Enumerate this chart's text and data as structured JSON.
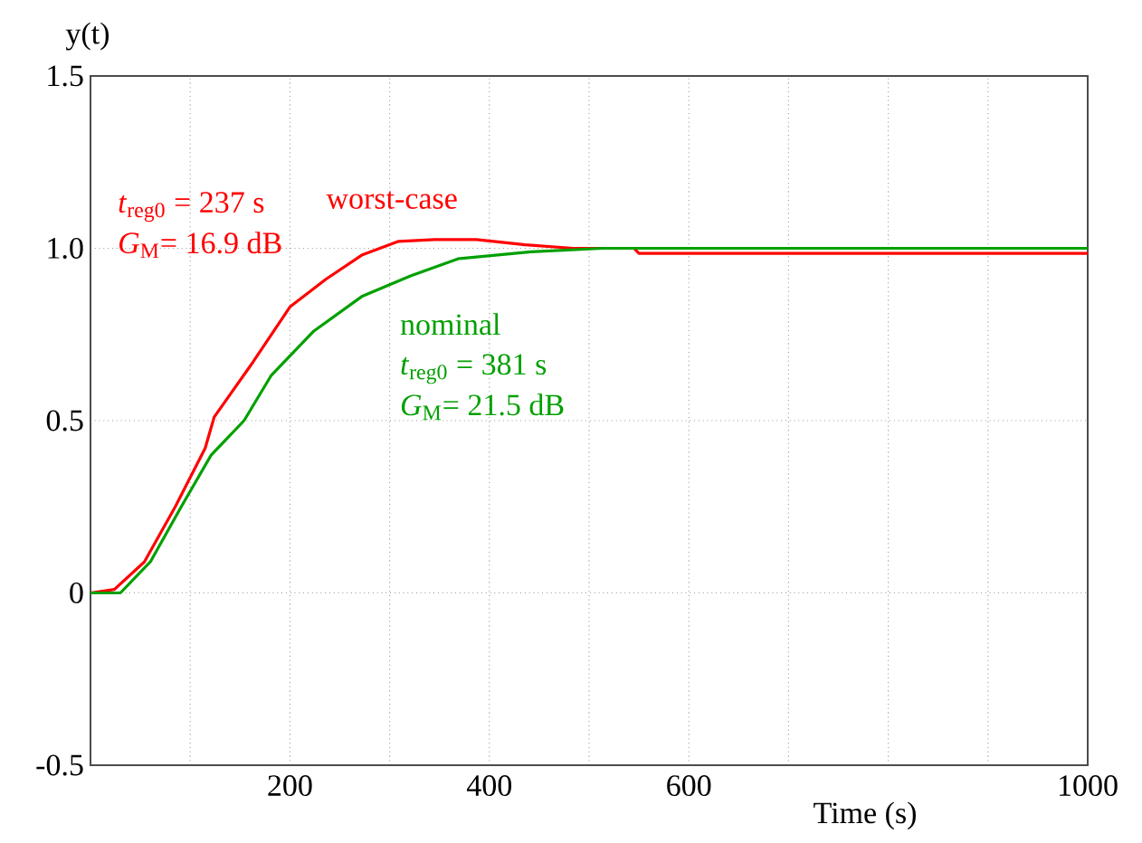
{
  "chart_data": {
    "type": "line",
    "xlabel": "Time (s)",
    "ylabel": "y(t)",
    "xlim": [
      0,
      1000
    ],
    "ylim": [
      -0.5,
      1.5
    ],
    "xticks": [
      {
        "value": 100,
        "label": null
      },
      200,
      {
        "value": 300,
        "label": null
      },
      400,
      {
        "value": 500,
        "label": null
      },
      600,
      {
        "value": 700,
        "label": null
      },
      {
        "value": 800,
        "label": null
      },
      {
        "value": 900,
        "label": null
      },
      1000
    ],
    "yticks": [
      -0.5,
      {
        "value": 0,
        "label": "0"
      },
      0.5,
      {
        "value": 1.0,
        "label": "1.0"
      },
      1.5
    ],
    "grid": true,
    "series": [
      {
        "name": "worst-case",
        "color": "#ff0000",
        "x": [
          0,
          24,
          54,
          85,
          115,
          124,
          163,
          200,
          236,
          272,
          309,
          345,
          387,
          436,
          484,
          545,
          550,
          1000
        ],
        "values": [
          0,
          0.01,
          0.09,
          0.25,
          0.42,
          0.51,
          0.67,
          0.83,
          0.91,
          0.98,
          1.02,
          1.025,
          1.025,
          1.01,
          1.0,
          1.0,
          0.985,
          0.985
        ]
      },
      {
        "name": "nominal",
        "color": "#00a000",
        "x": [
          0,
          30,
          60,
          91,
          121,
          154,
          181,
          224,
          272,
          321,
          369,
          442,
          514,
          1000
        ],
        "values": [
          0,
          0,
          0.09,
          0.25,
          0.4,
          0.5,
          0.63,
          0.76,
          0.86,
          0.92,
          0.97,
          0.99,
          1.0,
          1.0
        ]
      }
    ],
    "annotations": [
      "*t*$_{reg0}$ = 237 s",
      "*G*$_{M}$= 16.9 dB",
      "*t*$_{reg0}$ = 381 s",
      "*G*$_{M}$= 21.5 dB"
    ]
  }
}
